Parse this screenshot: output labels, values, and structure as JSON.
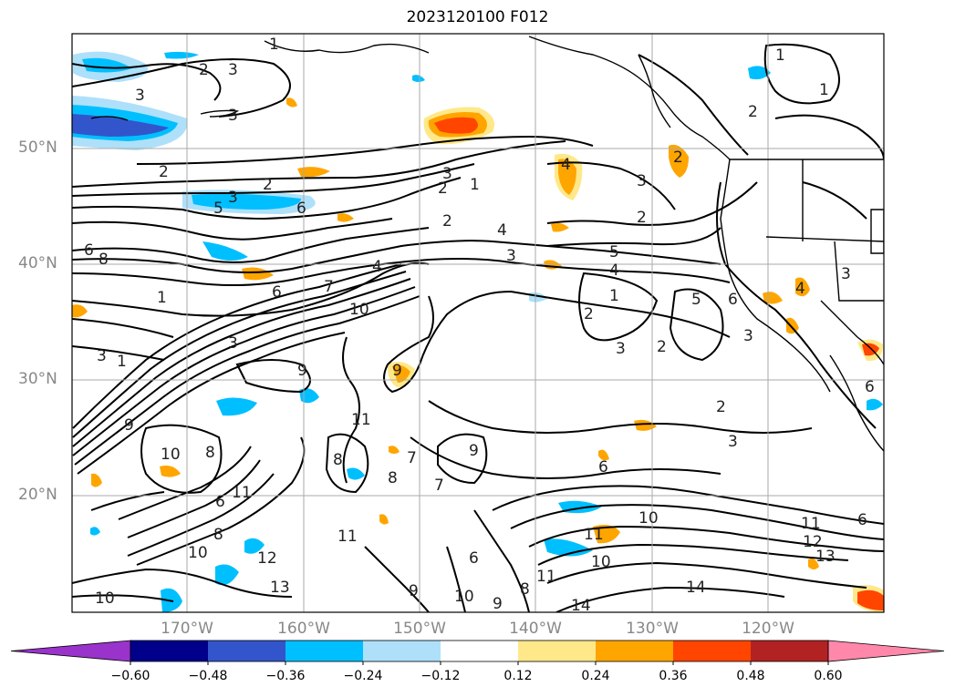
{
  "title": "2023120100 F012",
  "latitude_labels": [
    "50°N",
    "40°N",
    "30°N",
    "20°N"
  ],
  "longitude_labels": [
    "170°W",
    "160°W",
    "150°W",
    "140°W",
    "130°W",
    "120°W"
  ],
  "colorbar": {
    "ticks": [
      "−0.60",
      "−0.48",
      "−0.36",
      "−0.24",
      "−0.12",
      "0.12",
      "0.24",
      "0.36",
      "0.48",
      "0.60"
    ],
    "colors": [
      "#9933cc",
      "#00008b",
      "#3355cc",
      "#00bfff",
      "#aee0fa",
      "#ffffff",
      "#ffe88a",
      "#ffa500",
      "#ff4500",
      "#b22222",
      "#ff88aa"
    ]
  },
  "contour_labels": [
    "1",
    "2",
    "3",
    "4",
    "5",
    "6",
    "7",
    "8",
    "9",
    "10",
    "11",
    "12",
    "13",
    "14"
  ],
  "colors": {
    "positive_light": "#ffe88a",
    "positive_mid": "#ffa500",
    "positive_strong": "#ff4500",
    "negative_light": "#aee0fa",
    "negative_mid": "#00bfff",
    "negative_strong": "#3355cc",
    "contour": "#000000",
    "grid": "#aaaaaa",
    "border": "#000000"
  }
}
